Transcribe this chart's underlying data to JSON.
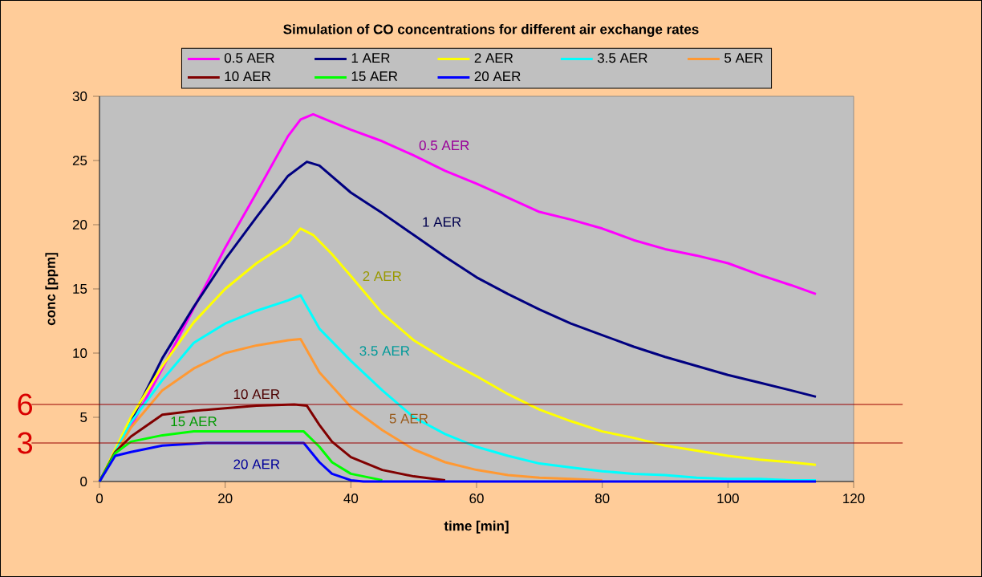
{
  "chart_data": {
    "type": "line",
    "title": "Simulation of CO concentrations for different air exchange rates",
    "xlabel": "time [min]",
    "ylabel": "conc [ppm]",
    "xlim": [
      0,
      120
    ],
    "ylim": [
      0,
      30
    ],
    "xticks": [
      0,
      20,
      40,
      60,
      80,
      100,
      120
    ],
    "yticks": [
      0,
      5,
      10,
      15,
      20,
      25,
      30
    ],
    "legend": "top",
    "series": [
      {
        "name": "0.5 AER",
        "color": "#ff00ff",
        "x": [
          0,
          5,
          10,
          15,
          20,
          25,
          30,
          32,
          34,
          36,
          40,
          45,
          50,
          55,
          60,
          65,
          70,
          75,
          80,
          85,
          90,
          95,
          100,
          105,
          110,
          114
        ],
        "values": [
          0,
          4.3,
          8.8,
          13.5,
          18.2,
          22.5,
          26.9,
          28.2,
          28.6,
          28.2,
          27.4,
          26.5,
          25.4,
          24.2,
          23.2,
          22.1,
          21.0,
          20.4,
          19.7,
          18.8,
          18.1,
          17.6,
          17.0,
          16.1,
          15.3,
          14.6
        ]
      },
      {
        "name": "1 AER",
        "color": "#000080",
        "x": [
          0,
          5,
          10,
          15,
          20,
          25,
          30,
          33,
          35,
          40,
          45,
          50,
          55,
          60,
          65,
          70,
          75,
          80,
          85,
          90,
          95,
          100,
          105,
          110,
          114
        ],
        "values": [
          0,
          4.7,
          9.6,
          13.6,
          17.3,
          20.6,
          23.8,
          24.9,
          24.6,
          22.5,
          20.9,
          19.2,
          17.5,
          15.9,
          14.6,
          13.4,
          12.3,
          11.4,
          10.5,
          9.7,
          9.0,
          8.3,
          7.7,
          7.1,
          6.6
        ]
      },
      {
        "name": "2 AER",
        "color": "#ffff00",
        "x": [
          0,
          5,
          10,
          15,
          20,
          25,
          30,
          32,
          34,
          37,
          40,
          45,
          50,
          55,
          60,
          65,
          70,
          75,
          80,
          85,
          90,
          95,
          100,
          105,
          110,
          114
        ],
        "values": [
          0,
          5.0,
          9.0,
          12.4,
          15.0,
          17.0,
          18.6,
          19.7,
          19.2,
          17.7,
          16.0,
          13.1,
          11.0,
          9.5,
          8.2,
          6.8,
          5.6,
          4.7,
          3.9,
          3.4,
          2.8,
          2.4,
          2.0,
          1.7,
          1.5,
          1.3
        ]
      },
      {
        "name": "3.5 AER",
        "color": "#00ffff",
        "x": [
          0,
          5,
          10,
          15,
          20,
          25,
          30,
          32,
          35,
          40,
          45,
          50,
          55,
          60,
          65,
          70,
          75,
          80,
          85,
          90,
          95,
          100,
          105,
          110,
          114
        ],
        "values": [
          0,
          4.6,
          7.9,
          10.8,
          12.3,
          13.3,
          14.1,
          14.5,
          11.9,
          9.4,
          7.1,
          5.0,
          3.7,
          2.7,
          2.0,
          1.4,
          1.1,
          0.8,
          0.6,
          0.5,
          0.3,
          0.2,
          0.2,
          0.1,
          0.1
        ]
      },
      {
        "name": "5 AER",
        "color": "#ff9933",
        "x": [
          0,
          5,
          10,
          15,
          20,
          25,
          30,
          32,
          35,
          40,
          45,
          50,
          55,
          60,
          65,
          70,
          75,
          80
        ],
        "values": [
          0,
          4.2,
          7.1,
          8.8,
          10.0,
          10.6,
          11.0,
          11.1,
          8.5,
          5.8,
          4.0,
          2.5,
          1.5,
          0.9,
          0.5,
          0.3,
          0.2,
          0.1
        ]
      },
      {
        "name": "10 AER",
        "color": "#800000",
        "x": [
          0,
          2.5,
          5,
          10,
          15,
          20,
          25,
          31,
          33,
          35,
          37,
          40,
          45,
          50,
          55
        ],
        "values": [
          0,
          2.3,
          3.5,
          5.2,
          5.5,
          5.7,
          5.9,
          6.0,
          5.9,
          4.4,
          3.1,
          1.9,
          0.9,
          0.4,
          0.1
        ]
      },
      {
        "name": "15 AER",
        "color": "#00ff00",
        "x": [
          0,
          2.5,
          5,
          10,
          15,
          20,
          25,
          32.5,
          35,
          37,
          40,
          45
        ],
        "values": [
          0,
          2.2,
          3.1,
          3.6,
          3.9,
          3.9,
          3.9,
          3.9,
          2.7,
          1.5,
          0.6,
          0.1
        ]
      },
      {
        "name": "20 AER",
        "color": "#0000ff",
        "x": [
          0,
          2.5,
          5,
          10,
          17,
          25,
          32.5,
          35,
          37,
          40,
          42,
          114
        ],
        "values": [
          0,
          2.0,
          2.3,
          2.8,
          3.0,
          3.0,
          3.0,
          1.5,
          0.6,
          0.1,
          0,
          0
        ]
      }
    ],
    "ref_lines": [
      {
        "axis": "y",
        "value": 6,
        "label": "6",
        "color": "#990000"
      },
      {
        "axis": "y",
        "value": 3,
        "label": "3",
        "color": "#990000"
      }
    ],
    "annotations": [
      {
        "text": "0.5 AER",
        "x": 50,
        "y": 25.4
      },
      {
        "text": "1 AER",
        "x": 50,
        "y": 19.2
      },
      {
        "text": "2 AER",
        "x": 40,
        "y": 16.0
      },
      {
        "text": "3.5 AER",
        "x": 40,
        "y": 9.4
      },
      {
        "text": "5 AER",
        "x": 45,
        "y": 4.0
      },
      {
        "text": "10 AER",
        "x": 25,
        "y": 5.9
      },
      {
        "text": "15 AER",
        "x": 15,
        "y": 3.9
      },
      {
        "text": "20 AER",
        "x": 25,
        "y": 3.0
      }
    ]
  }
}
